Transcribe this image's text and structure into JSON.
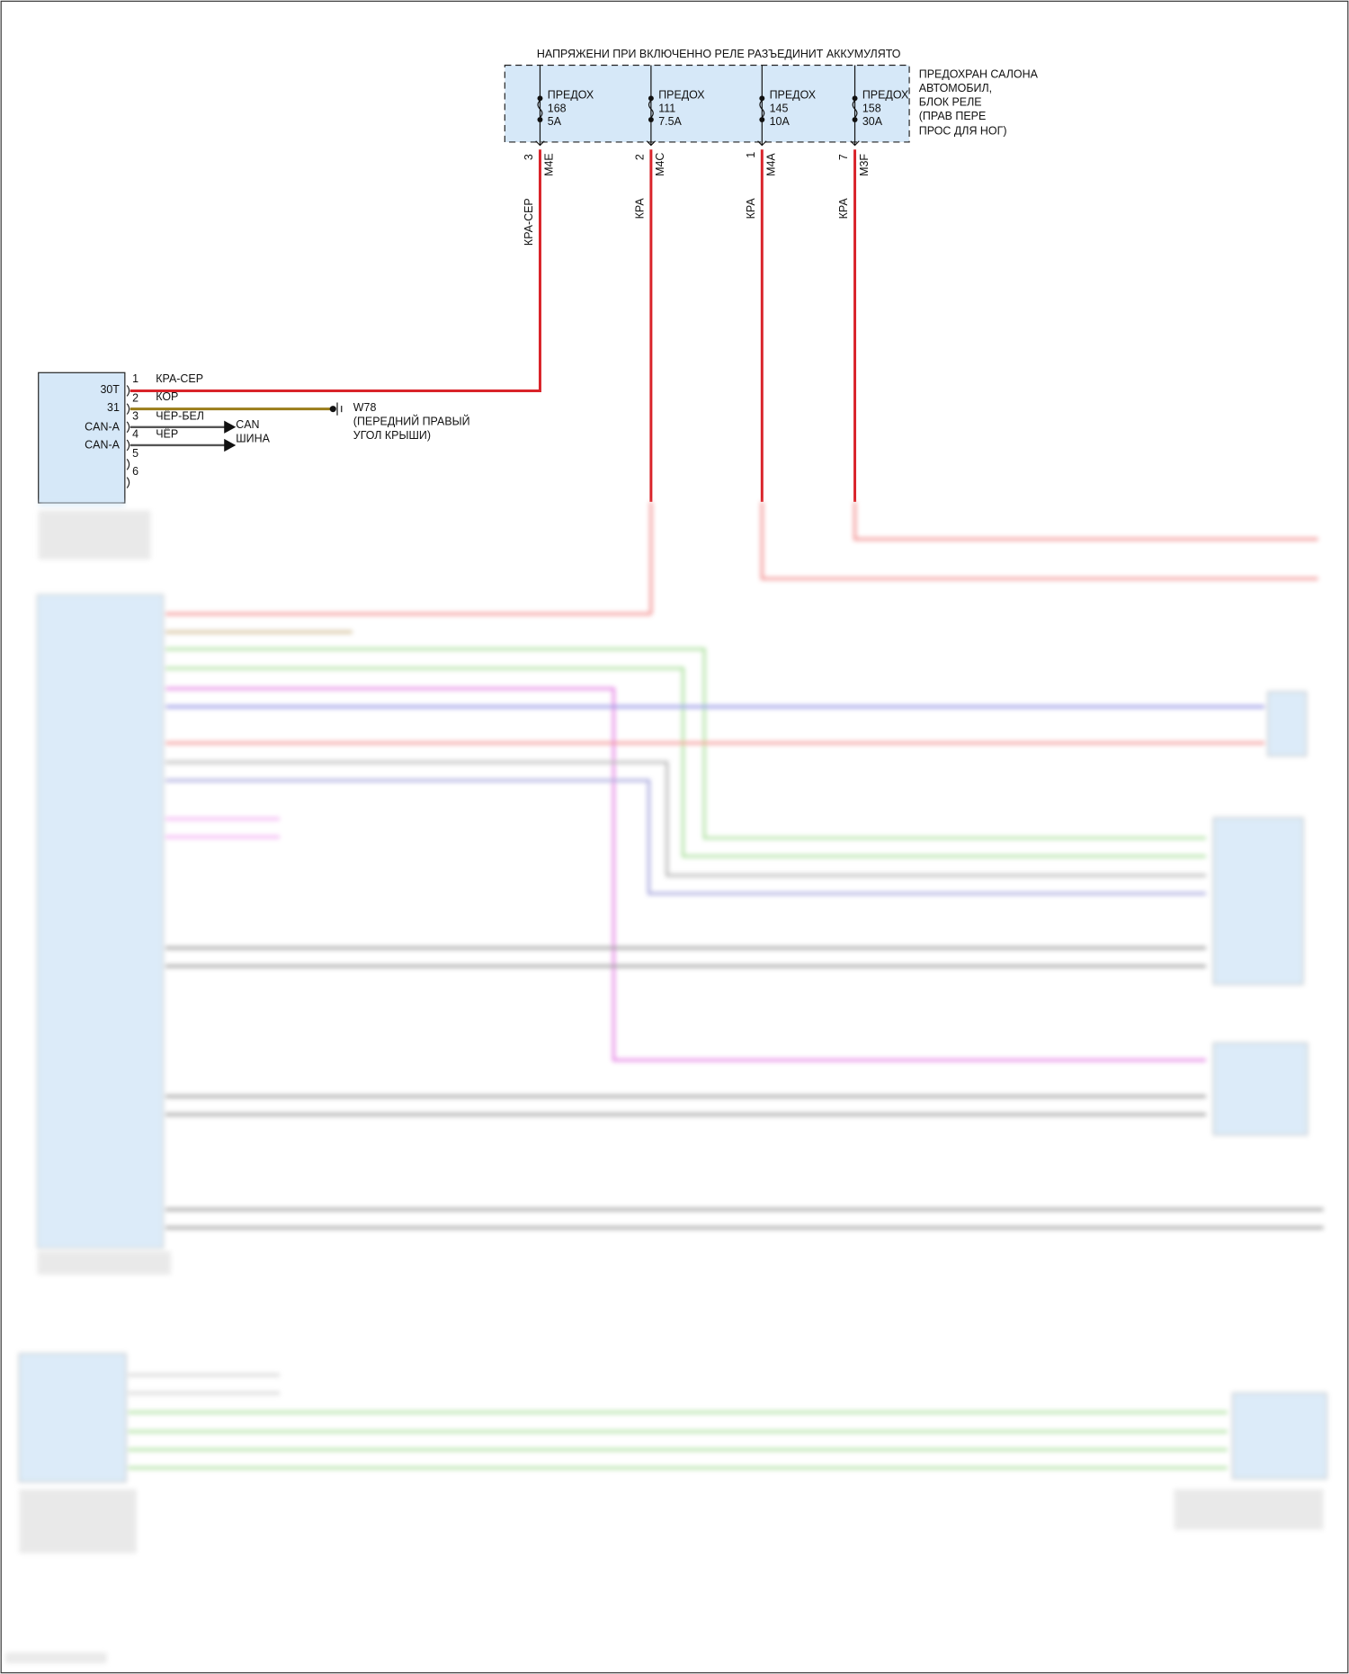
{
  "header": {
    "title": "НАПРЯЖЕНИ ПРИ ВКЛЮЧЕННО РЕЛЕ РАЗЪЕДИНИТ АККУМУЛЯТО"
  },
  "fuse_block": {
    "label_lines": [
      "ПРЕДОХРАН САЛОНА",
      "АВТОМОБИЛ,",
      "БЛОК РЕЛЕ",
      "(ПРАВ ПЕРЕ",
      "ПРОС ДЛЯ НОГ)"
    ],
    "fuses": [
      {
        "name": "ПРЕДОХ",
        "number": "168",
        "rating": "5A",
        "pin": "3",
        "connector": "M4E",
        "wire": "КРА-СЕР"
      },
      {
        "name": "ПРЕДОХ",
        "number": "111",
        "rating": "7.5A",
        "pin": "2",
        "connector": "M4C",
        "wire": "КРА"
      },
      {
        "name": "ПРЕДОХ",
        "number": "145",
        "rating": "10A",
        "pin": "1",
        "connector": "M4A",
        "wire": "КРА"
      },
      {
        "name": "ПРЕДОХ",
        "number": "158",
        "rating": "30A",
        "pin": "7",
        "connector": "M3F",
        "wire": "КРА"
      }
    ]
  },
  "module": {
    "terminals": [
      "30T",
      "31",
      "CAN-A",
      "CAN-A"
    ],
    "pins": [
      "1",
      "2",
      "3",
      "4",
      "5",
      "6"
    ],
    "wires": [
      "КРА-СЕР",
      "КОР",
      "ЧЁР-БЕЛ",
      "ЧЁР"
    ]
  },
  "can_bus": {
    "line1": "CAN",
    "line2": "ШИНА"
  },
  "ground": {
    "id": "W78",
    "line1": "(ПЕРЕДНИЙ ПРАВЫЙ",
    "line2": "УГОЛ КРЫШИ)"
  },
  "colors": {
    "red": "#d9232a",
    "olive": "#9a7d1a",
    "gray": "#555555",
    "box_fill": "#d6e8f8",
    "green": "#8fd07a",
    "magenta": "#e040e0",
    "blue": "#6a6ae0"
  }
}
